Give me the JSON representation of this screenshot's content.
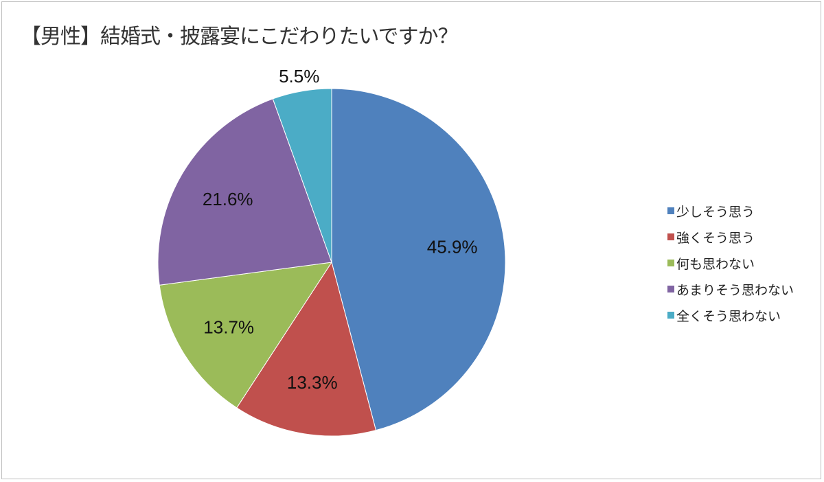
{
  "chart_data": {
    "type": "pie",
    "title": "【男性】結婚式・披露宴にこだわりたいですか？",
    "start_angle": "12 o'clock",
    "direction": "clockwise",
    "legend_position": "right",
    "slices": [
      {
        "label": "少しそう思う",
        "value": 45.9,
        "data_label": "45.9%",
        "color": "#4f81bd"
      },
      {
        "label": "強くそう思う",
        "value": 13.3,
        "data_label": "13.3%",
        "color": "#c0504d"
      },
      {
        "label": "何も思わない",
        "value": 13.7,
        "data_label": "13.7%",
        "color": "#9bbb59"
      },
      {
        "label": "あまりそう思わない",
        "value": 21.6,
        "data_label": "21.6%",
        "color": "#8064a2"
      },
      {
        "label": "全くそう思わない",
        "value": 5.5,
        "data_label": "5.5%",
        "color": "#4bacc6"
      }
    ]
  }
}
